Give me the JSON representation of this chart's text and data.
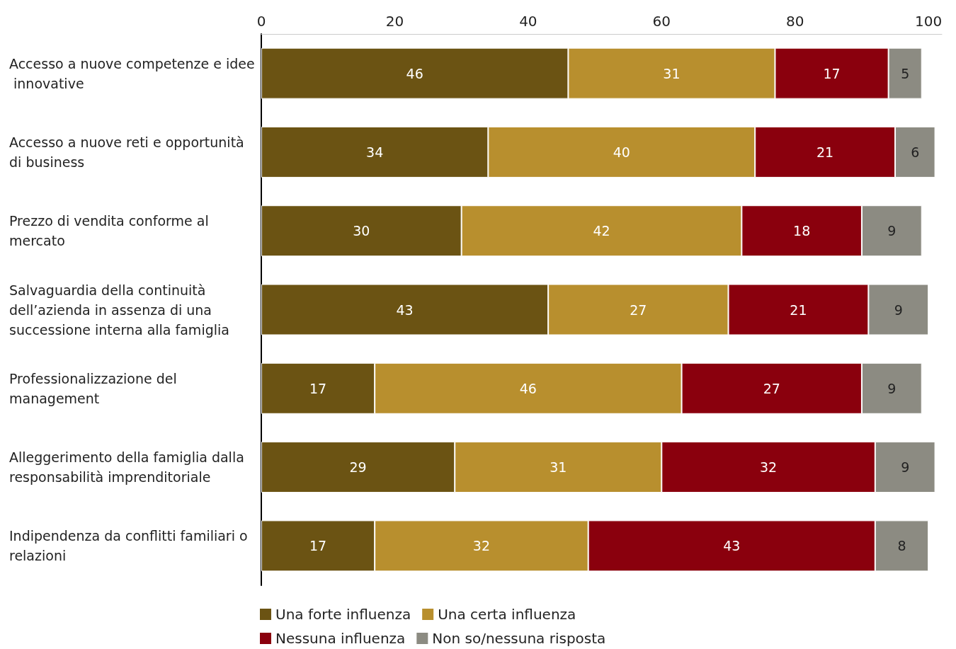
{
  "chart_data": {
    "type": "bar",
    "orientation": "horizontal",
    "stacked": true,
    "data_labels": true,
    "grid": false,
    "legend": "bottom",
    "categories": [
      "Accesso a nuove competenze e idee innovative",
      "Accesso a nuove reti e opportunità di business",
      "Prezzo di vendita conforme al mercato",
      "Salvaguardia della continuità dell’azienda in assenza di una successione interna alla famiglia",
      "Professionalizzazione del management",
      "Alleggerimento della famiglia dalla responsabilità imprenditoriale",
      "Indipendenza da conflitti familiari o relazioni"
    ],
    "xlim": [
      0,
      102
    ],
    "xticks": [
      0,
      20,
      40,
      60,
      80,
      100
    ],
    "series": [
      {
        "name": "Una forte influenza",
        "color": "#6b5313",
        "values": [
          46,
          34,
          30,
          43,
          17,
          29,
          17
        ]
      },
      {
        "name": "Una certa influenza",
        "color": "#b88f2e",
        "values": [
          31,
          40,
          42,
          27,
          46,
          31,
          32
        ]
      },
      {
        "name": "Nessuna influenza",
        "color": "#8a000d",
        "values": [
          17,
          21,
          18,
          21,
          27,
          32,
          43
        ]
      },
      {
        "name": "Non so/nessuna risposta",
        "color": "#8c8b82",
        "values": [
          5,
          6,
          9,
          9,
          9,
          9,
          8
        ]
      }
    ]
  }
}
